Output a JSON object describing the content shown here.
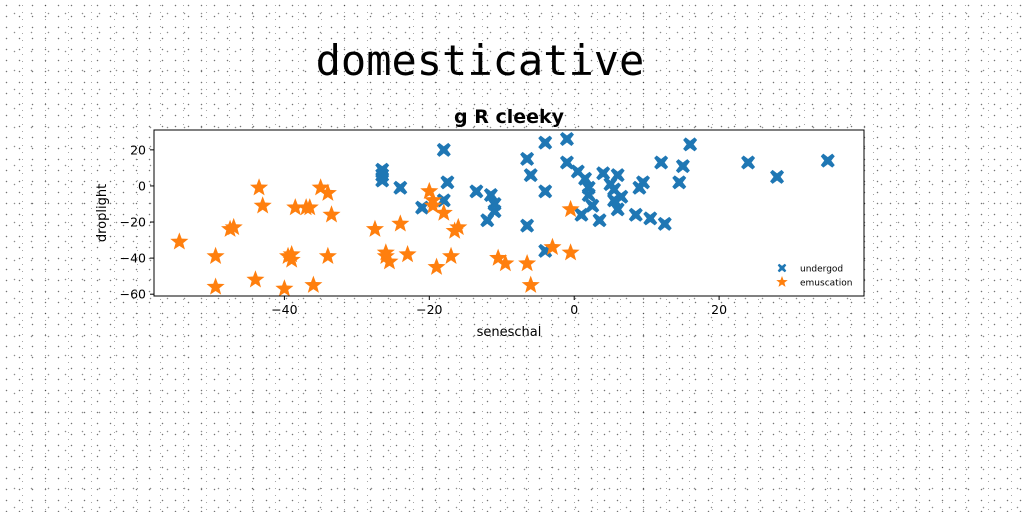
{
  "chart_data": {
    "type": "scatter",
    "suptitle": "domesticative",
    "title": "g R cleeky",
    "xlabel": "seneschal",
    "ylabel": "droplight",
    "xlim": [
      -58,
      40
    ],
    "ylim": [
      -61,
      31
    ],
    "xticks": [
      -40,
      -20,
      0,
      20
    ],
    "yticks": [
      -60,
      -40,
      -20,
      0,
      20
    ],
    "grid": false,
    "legend_position": "lower-right",
    "series": [
      {
        "name": "undergod",
        "marker": "x-filled",
        "color": "#1f77b4",
        "points": [
          [
            -26.5,
            9
          ],
          [
            -26.5,
            6
          ],
          [
            -26.5,
            3
          ],
          [
            -24,
            -1
          ],
          [
            -21,
            -12
          ],
          [
            -18,
            20
          ],
          [
            -17.5,
            2
          ],
          [
            -18,
            -8
          ],
          [
            -13.5,
            -3
          ],
          [
            -11.5,
            -5
          ],
          [
            -11,
            -10
          ],
          [
            -11,
            -14
          ],
          [
            -12,
            -19
          ],
          [
            -6.5,
            15
          ],
          [
            -6,
            6
          ],
          [
            -4,
            24
          ],
          [
            -4,
            -3
          ],
          [
            -4,
            -36
          ],
          [
            -6.5,
            -22
          ],
          [
            -1,
            26
          ],
          [
            -1,
            13
          ],
          [
            0.5,
            8
          ],
          [
            1.5,
            4
          ],
          [
            2,
            -1
          ],
          [
            2,
            -5
          ],
          [
            2.5,
            -11
          ],
          [
            1,
            -16
          ],
          [
            3.5,
            -19
          ],
          [
            4,
            7
          ],
          [
            5,
            1
          ],
          [
            5.5,
            -2
          ],
          [
            5.5,
            -8
          ],
          [
            6,
            6
          ],
          [
            6.5,
            -6
          ],
          [
            6,
            -13
          ],
          [
            8.5,
            -16
          ],
          [
            9,
            -1
          ],
          [
            9.5,
            2
          ],
          [
            10.5,
            -18
          ],
          [
            12,
            13
          ],
          [
            12.5,
            -21
          ],
          [
            14.5,
            2
          ],
          [
            15,
            11
          ],
          [
            16,
            23
          ],
          [
            24,
            13
          ],
          [
            28,
            5
          ],
          [
            35,
            14
          ]
        ]
      },
      {
        "name": "emuscation",
        "marker": "star",
        "color": "#ff7f0e",
        "points": [
          [
            -54.5,
            -31
          ],
          [
            -49.5,
            -39
          ],
          [
            -49.5,
            -56
          ],
          [
            -47.5,
            -24
          ],
          [
            -47,
            -23
          ],
          [
            -44,
            -52
          ],
          [
            -43.5,
            -1
          ],
          [
            -43,
            -11
          ],
          [
            -40,
            -57
          ],
          [
            -39.5,
            -39
          ],
          [
            -39,
            -41
          ],
          [
            -39,
            -38
          ],
          [
            -38.5,
            -12
          ],
          [
            -37,
            -12
          ],
          [
            -36.5,
            -12
          ],
          [
            -36,
            -55
          ],
          [
            -35,
            -1
          ],
          [
            -34,
            -4
          ],
          [
            -34,
            -39
          ],
          [
            -33.5,
            -16
          ],
          [
            -27.5,
            -24
          ],
          [
            -26,
            -37
          ],
          [
            -26,
            -39
          ],
          [
            -25.5,
            -42
          ],
          [
            -24,
            -21
          ],
          [
            -23,
            -38
          ],
          [
            -20,
            -3
          ],
          [
            -19.5,
            -8
          ],
          [
            -19.5,
            -11
          ],
          [
            -19,
            -45
          ],
          [
            -18,
            -15
          ],
          [
            -17,
            -39
          ],
          [
            -16.5,
            -25
          ],
          [
            -16,
            -23
          ],
          [
            -10.5,
            -40
          ],
          [
            -9.5,
            -43
          ],
          [
            -6.5,
            -43
          ],
          [
            -6,
            -55
          ],
          [
            -3,
            -34
          ],
          [
            -0.5,
            -13
          ],
          [
            -0.5,
            -37
          ]
        ]
      }
    ]
  }
}
